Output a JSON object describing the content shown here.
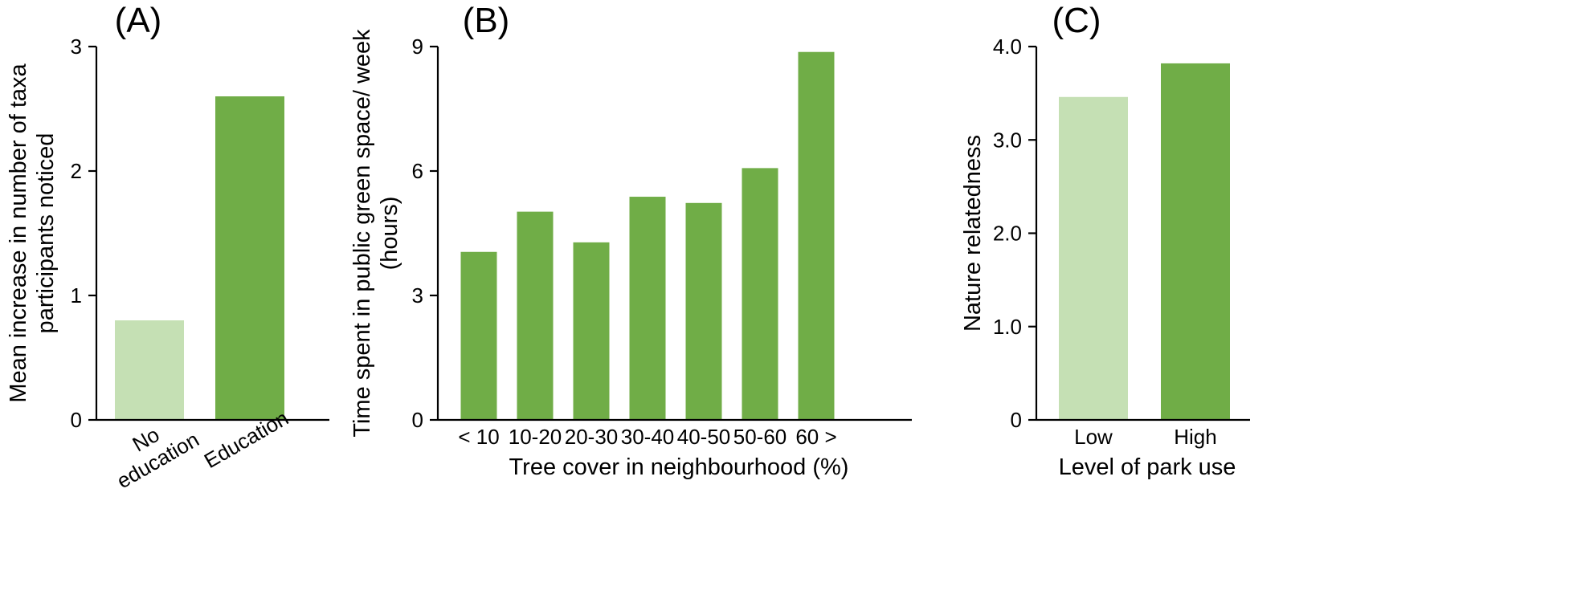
{
  "chart_data": [
    {
      "panel": "(A)",
      "type": "bar",
      "categories": [
        "No\neducation",
        "Education"
      ],
      "values": [
        0.8,
        2.6
      ],
      "colors": [
        "#c5e0b4",
        "#70ad47"
      ],
      "xlabel": "",
      "ylabel": "Mean increase in number of taxa\nparticipants noticed",
      "ylim": [
        0,
        3
      ],
      "yticks": [
        "0",
        "1",
        "2",
        "3"
      ],
      "grid": false
    },
    {
      "panel": "(B)",
      "type": "bar",
      "categories": [
        "< 10",
        "10-20",
        "20-30",
        "30-40",
        "40-50",
        "50-60",
        "60 >"
      ],
      "values": [
        4.05,
        5.02,
        4.28,
        5.38,
        5.23,
        6.07,
        8.87
      ],
      "colors": [
        "#70ad47",
        "#70ad47",
        "#70ad47",
        "#70ad47",
        "#70ad47",
        "#70ad47",
        "#70ad47"
      ],
      "xlabel": "Tree cover in neighbourhood (%)",
      "ylabel": "Time spent in public green space/ week\n(hours)",
      "ylim": [
        0,
        9
      ],
      "yticks": [
        "0",
        "3",
        "6",
        "9"
      ],
      "grid": false
    },
    {
      "panel": "(C)",
      "type": "bar",
      "categories": [
        "Low",
        "High"
      ],
      "values": [
        3.46,
        3.82
      ],
      "colors": [
        "#c5e0b4",
        "#70ad47"
      ],
      "xlabel": "Level of park use",
      "ylabel": "Nature relatedness",
      "ylim": [
        0,
        4
      ],
      "yticks": [
        "0",
        "1.0",
        "2.0",
        "3.0",
        "4.0"
      ],
      "grid": false
    }
  ]
}
